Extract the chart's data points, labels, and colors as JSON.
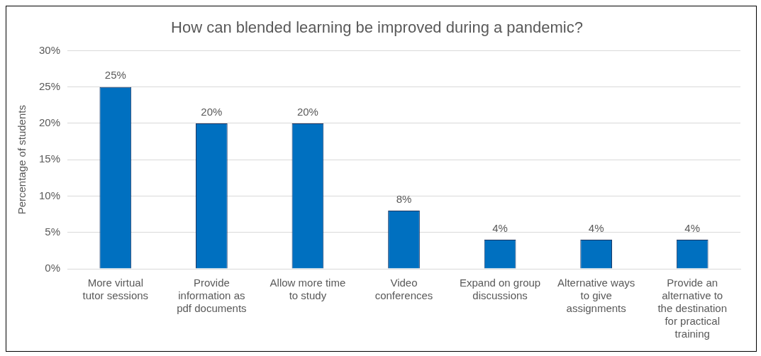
{
  "chart_data": {
    "type": "bar",
    "title": "How can blended learning be improved during a pandemic?",
    "ylabel": "Percentage of students",
    "categories": [
      "More virtual tutor sessions",
      "Provide information as pdf documents",
      "Allow more time to study",
      "Video conferences",
      "Expand on group discussions",
      "Alternative ways to give assignments",
      "Provide an alternative to the destination for practical training"
    ],
    "values": [
      25,
      20,
      20,
      8,
      4,
      4,
      4
    ],
    "value_labels": [
      "25%",
      "20%",
      "20%",
      "8%",
      "4%",
      "4%",
      "4%"
    ],
    "color": "#0070c0",
    "ylim": [
      0,
      30
    ],
    "yticks": [
      {
        "value": 0,
        "label": "0%"
      },
      {
        "value": 5,
        "label": "5%"
      },
      {
        "value": 10,
        "label": "10%"
      },
      {
        "value": 15,
        "label": "15%"
      },
      {
        "value": 20,
        "label": "20%"
      },
      {
        "value": 25,
        "label": "25%"
      },
      {
        "value": 30,
        "label": "30%"
      }
    ],
    "grid": "y",
    "legend": false
  }
}
